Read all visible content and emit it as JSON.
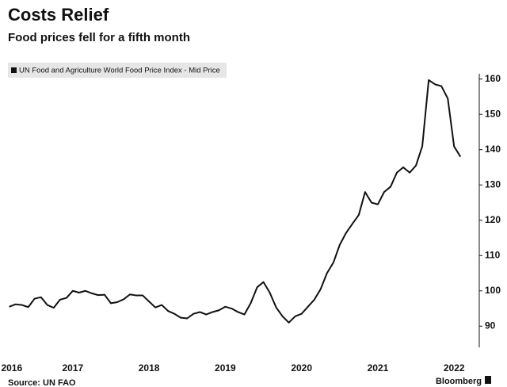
{
  "chart_data": {
    "type": "line",
    "title": "Costs Relief",
    "subtitle": "Food prices fell for a fifth month",
    "source": "Source: UN FAO",
    "brand": "Bloomberg",
    "x": [
      2016.667,
      2016.75,
      2016.833,
      2016.917,
      2017.0,
      2017.083,
      2017.167,
      2017.25,
      2017.333,
      2017.417,
      2017.5,
      2017.583,
      2017.667,
      2017.75,
      2017.833,
      2017.917,
      2018.0,
      2018.083,
      2018.167,
      2018.25,
      2018.333,
      2018.417,
      2018.5,
      2018.583,
      2018.667,
      2018.75,
      2018.833,
      2018.917,
      2019.0,
      2019.083,
      2019.167,
      2019.25,
      2019.333,
      2019.417,
      2019.5,
      2019.583,
      2019.667,
      2019.75,
      2019.833,
      2019.917,
      2020.0,
      2020.083,
      2020.167,
      2020.25,
      2020.333,
      2020.417,
      2020.5,
      2020.583,
      2020.667,
      2020.75,
      2020.833,
      2020.917,
      2021.0,
      2021.083,
      2021.167,
      2021.25,
      2021.333,
      2021.417,
      2021.5,
      2021.583,
      2021.667,
      2021.75,
      2021.833,
      2021.917,
      2022.0,
      2022.083,
      2022.167,
      2022.25,
      2022.333,
      2022.417,
      2022.5,
      2022.583
    ],
    "series": [
      {
        "name": "UN Food and Agriculture World Food Price Index - Mid Price",
        "color": "#111111",
        "values": [
          95.5,
          96.2,
          96.0,
          95.4,
          97.8,
          98.2,
          96.0,
          95.2,
          97.5,
          98.0,
          100.0,
          99.5,
          100.0,
          99.3,
          98.8,
          98.9,
          96.5,
          96.8,
          97.6,
          99.0,
          98.7,
          98.7,
          97.0,
          95.3,
          96.0,
          94.3,
          93.5,
          92.4,
          92.2,
          93.5,
          94.0,
          93.3,
          94.0,
          94.5,
          95.5,
          95.0,
          94.0,
          93.3,
          96.5,
          101.0,
          102.5,
          99.5,
          95.3,
          92.8,
          91.0,
          92.8,
          93.5,
          95.5,
          97.5,
          100.5,
          105.0,
          108.0,
          113.0,
          116.4,
          119.0,
          121.5,
          128.0,
          125.0,
          124.5,
          128.0,
          129.5,
          133.5,
          135.0,
          133.5,
          135.5,
          141.0,
          159.7,
          158.5,
          158.0,
          154.5,
          140.9,
          138.0
        ]
      }
    ],
    "xlim": [
      2016.65,
      2022.83
    ],
    "xticks": [
      {
        "value": 2016.7,
        "label": "2016"
      },
      {
        "value": 2017.5,
        "label": "2017"
      },
      {
        "value": 2018.5,
        "label": "2018"
      },
      {
        "value": 2019.5,
        "label": "2019"
      },
      {
        "value": 2020.5,
        "label": "2020"
      },
      {
        "value": 2021.5,
        "label": "2021"
      },
      {
        "value": 2022.5,
        "label": "2022"
      }
    ],
    "ylim": [
      84,
      161.5
    ],
    "yticks": [
      90,
      100,
      110,
      120,
      130,
      140,
      150,
      160
    ]
  }
}
